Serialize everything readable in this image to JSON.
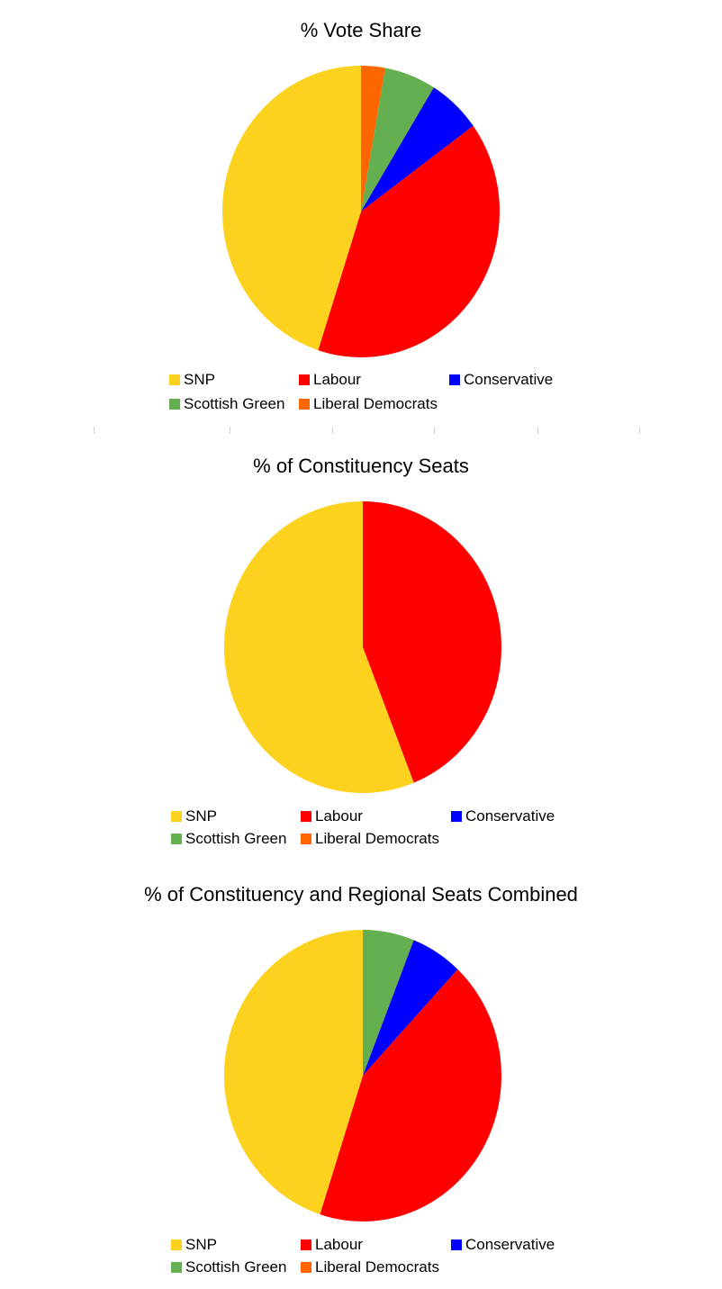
{
  "colors": {
    "SNP": "#FDD21F",
    "Labour": "#FF0000",
    "Conservative": "#0000FF",
    "Scottish Green": "#64AF50",
    "Liberal Democrats": "#FF6600"
  },
  "chart_data": [
    {
      "type": "pie",
      "title": "% Vote Share",
      "legend_position": "bottom",
      "start_angle": "12 o'clock, clockwise order",
      "slices": [
        {
          "label": "Liberal Democrats",
          "value": 2.8
        },
        {
          "label": "Scottish Green",
          "value": 6.0
        },
        {
          "label": "Conservative",
          "value": 6.2
        },
        {
          "label": "Labour",
          "value": 40.0
        },
        {
          "label": "SNP",
          "value": 45.0
        }
      ],
      "legend": [
        "SNP",
        "Labour",
        "Conservative",
        "Scottish Green",
        "Liberal Democrats"
      ]
    },
    {
      "type": "pie",
      "title": "% of Constituency Seats",
      "legend_position": "bottom",
      "start_angle": "12 o'clock, clockwise order",
      "slices": [
        {
          "label": "Labour",
          "value": 44.0
        },
        {
          "label": "SNP",
          "value": 56.0
        }
      ],
      "legend": [
        "SNP",
        "Labour",
        "Conservative",
        "Scottish Green",
        "Liberal Democrats"
      ]
    },
    {
      "type": "pie",
      "title": "% of Constituency and Regional Seats Combined",
      "legend_position": "bottom",
      "start_angle": "12 o'clock, clockwise order",
      "slices": [
        {
          "label": "Scottish Green",
          "value": 6.0
        },
        {
          "label": "Conservative",
          "value": 6.0
        },
        {
          "label": "Labour",
          "value": 43.0
        },
        {
          "label": "SNP",
          "value": 45.0
        }
      ],
      "legend": [
        "SNP",
        "Labour",
        "Conservative",
        "Scottish Green",
        "Liberal Democrats"
      ]
    }
  ]
}
